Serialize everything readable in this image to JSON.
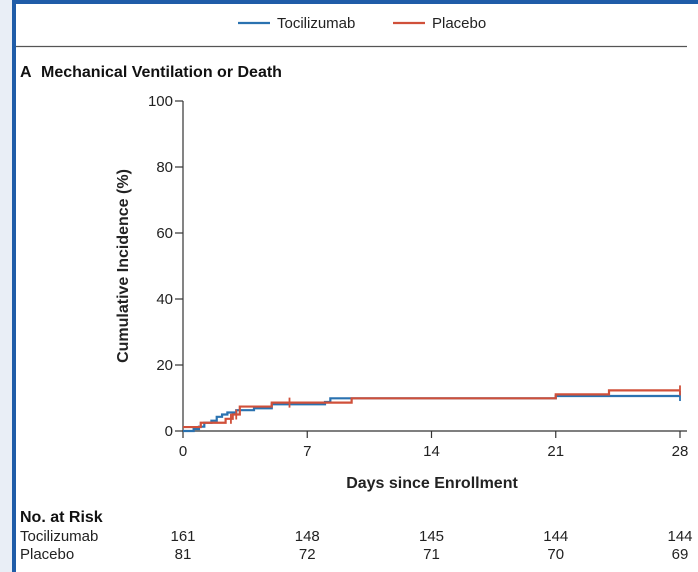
{
  "legend": {
    "items": [
      {
        "label": "Tocilizumab",
        "color": "#2a72b0"
      },
      {
        "label": "Placebo",
        "color": "#d0503a"
      }
    ]
  },
  "panel": {
    "letter": "A",
    "title": "Mechanical Ventilation or Death"
  },
  "chart_data": {
    "type": "line",
    "title": "Mechanical Ventilation or Death",
    "xlabel": "Days since Enrollment",
    "ylabel": "Cumulative Incidence (%)",
    "xlim": [
      0,
      28
    ],
    "ylim": [
      0,
      100
    ],
    "x_ticks": [
      0,
      7,
      14,
      21,
      28
    ],
    "y_ticks": [
      0,
      20,
      40,
      60,
      80,
      100
    ],
    "step": true,
    "series": [
      {
        "name": "Tocilizumab",
        "color": "#2a72b0",
        "x": [
          0,
          0.6,
          0.9,
          1.2,
          1.6,
          1.9,
          2.2,
          2.5,
          3.0,
          4.0,
          5.0,
          8.0,
          8.3,
          21.0,
          28.0
        ],
        "y": [
          0,
          0.6,
          1.3,
          2.5,
          3.1,
          4.3,
          5.0,
          5.6,
          6.3,
          6.9,
          8.1,
          8.8,
          9.9,
          10.6,
          10.6
        ],
        "censor_x": [
          28
        ]
      },
      {
        "name": "Placebo",
        "color": "#d0503a",
        "x": [
          0,
          1.0,
          1.5,
          2.4,
          2.8,
          3.2,
          5.0,
          9.5,
          21.0,
          24.0,
          28.0
        ],
        "y": [
          1.2,
          2.5,
          2.5,
          3.7,
          5.0,
          7.4,
          8.6,
          9.9,
          11.1,
          12.3,
          12.3
        ],
        "censor_x": [
          2.7,
          3.0,
          6.0,
          28
        ]
      }
    ]
  },
  "risk_table": {
    "title": "No. at Risk",
    "days": [
      0,
      7,
      14,
      21,
      28
    ],
    "rows": [
      {
        "label": "Tocilizumab",
        "values": [
          "161",
          "148",
          "145",
          "144",
          "144"
        ]
      },
      {
        "label": "Placebo",
        "values": [
          "81",
          "72",
          "71",
          "70",
          "69"
        ]
      }
    ]
  }
}
